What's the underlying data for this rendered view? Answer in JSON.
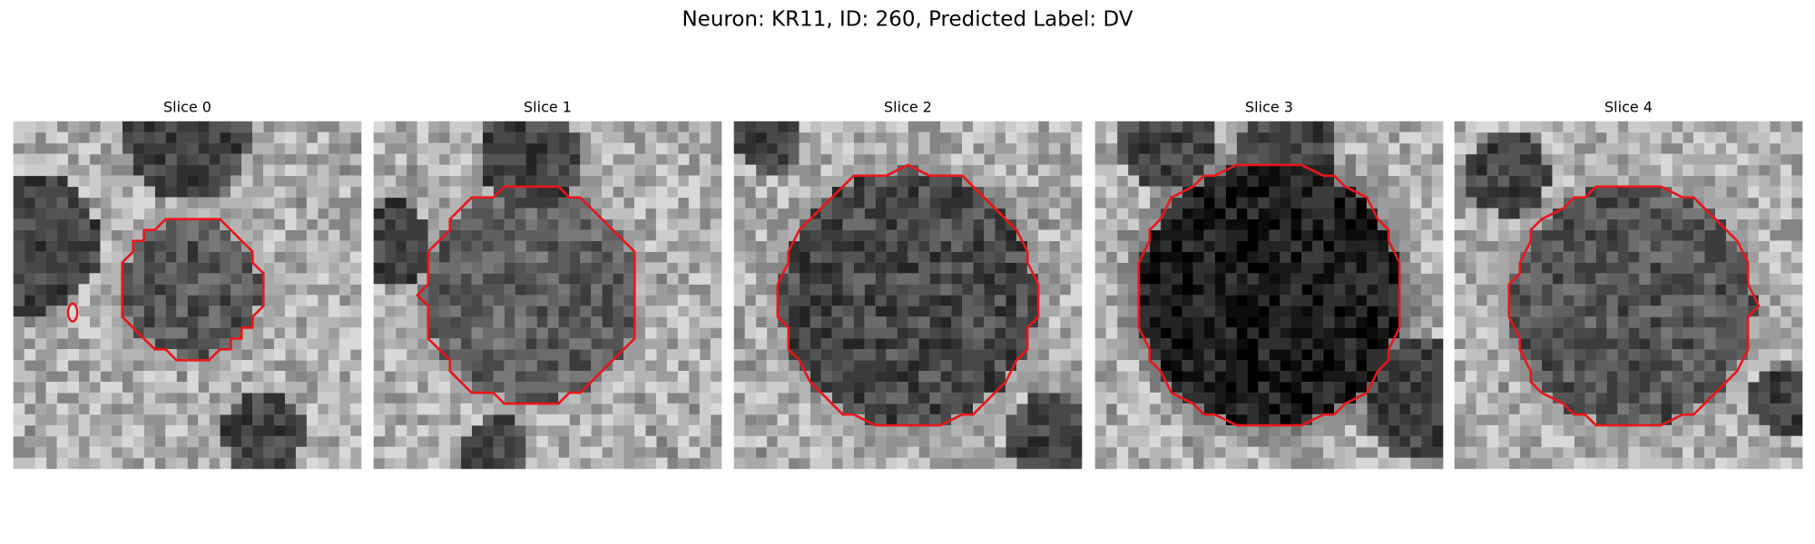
{
  "title": "Neuron: KR11, ID: 260, Predicted Label: DV",
  "panels": [
    {
      "title": "Slice 0"
    },
    {
      "title": "Slice 1"
    },
    {
      "title": "Slice 2"
    },
    {
      "title": "Slice 3"
    },
    {
      "title": "Slice 4"
    }
  ]
}
